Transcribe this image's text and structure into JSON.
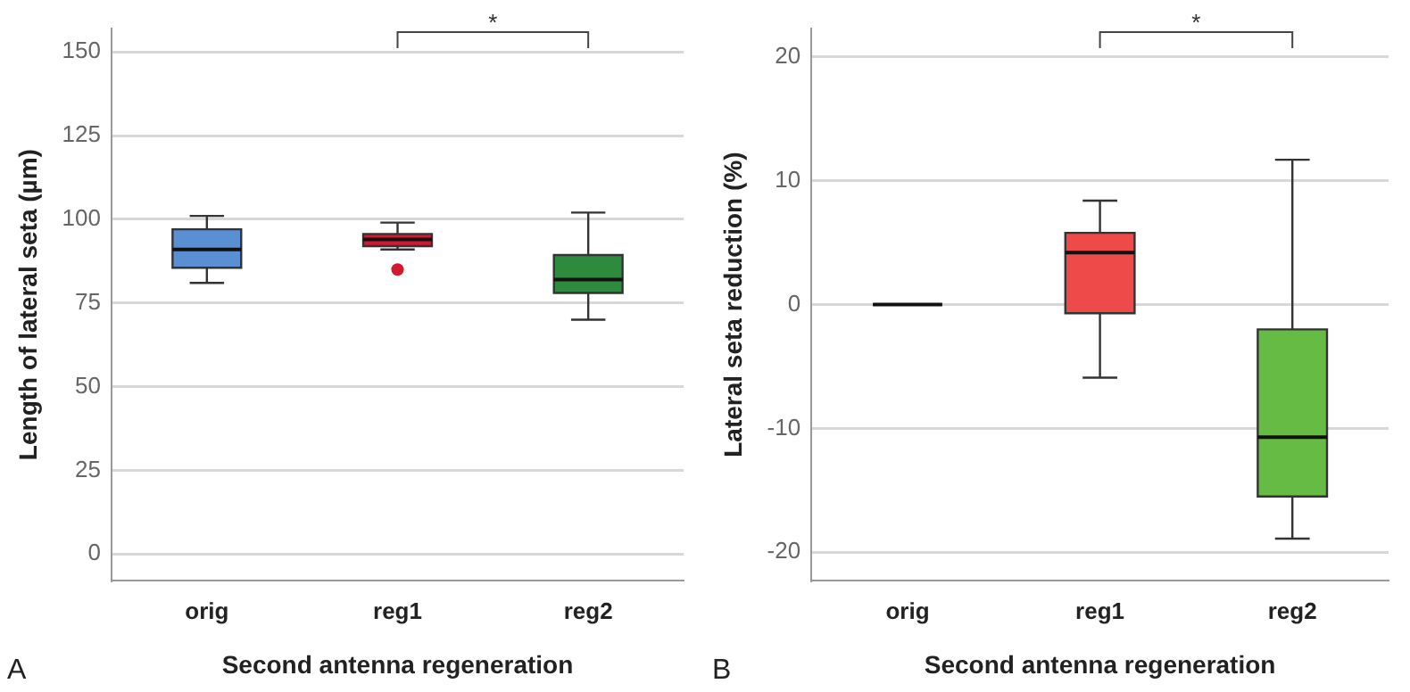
{
  "chart_data": [
    {
      "type": "box",
      "categories": [
        "orig",
        "reg1",
        "reg2"
      ],
      "xlabel": "Second antenna regeneration",
      "ylabel": "Length of lateral seta (µm)",
      "ylim": [
        -8,
        157
      ],
      "yticks": [
        0,
        25,
        50,
        75,
        100,
        125,
        150
      ],
      "grid": "y",
      "colors": [
        "#5b8fd4",
        "#d3182f",
        "#2e8b3e"
      ],
      "boxes": [
        {
          "low": 81,
          "q1": 85.5,
          "median": 91,
          "q3": 97,
          "high": 101
        },
        {
          "low": 91,
          "q1": 92,
          "median": 94,
          "q3": 95.6,
          "high": 99,
          "outliers": [
            85
          ]
        },
        {
          "low": 70,
          "q1": 78,
          "median": 82,
          "q3": 89.3,
          "high": 102
        }
      ],
      "annotations": [
        "*",
        "A"
      ]
    },
    {
      "type": "box",
      "categories": [
        "orig",
        "reg1",
        "reg2"
      ],
      "xlabel": "Second antenna regeneration",
      "ylabel": "Lateral seta reduction (%)",
      "ylim": [
        -22.3,
        22.3
      ],
      "yticks": [
        -20,
        -10,
        0,
        10,
        20
      ],
      "grid": "y",
      "colors": [
        "#333333",
        "#ee4a4a",
        "#66bb44"
      ],
      "boxes": [
        {
          "low": 0,
          "q1": 0,
          "median": 0,
          "q3": 0,
          "high": 0
        },
        {
          "low": -5.9,
          "q1": -0.7,
          "median": 4.2,
          "q3": 5.8,
          "high": 8.4
        },
        {
          "low": -18.9,
          "q1": -15.5,
          "median": -10.7,
          "q3": -2.0,
          "high": 11.7
        }
      ],
      "annotations": [
        "*",
        "B"
      ]
    }
  ]
}
